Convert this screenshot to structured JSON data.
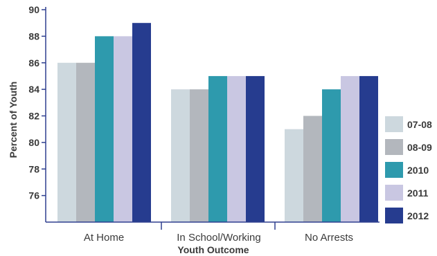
{
  "chart_data": {
    "type": "bar",
    "title": "",
    "xlabel": "Youth Outcome",
    "ylabel": "Percent of Youth",
    "ylim": [
      74,
      90
    ],
    "yticks": [
      76,
      78,
      80,
      82,
      84,
      86,
      88,
      90
    ],
    "categories": [
      "At Home",
      "In School/Working",
      "No Arrests"
    ],
    "series": [
      {
        "name": "07-08",
        "color": "#cdd8de",
        "values": [
          86,
          84,
          81
        ]
      },
      {
        "name": "08-09",
        "color": "#b3b7bd",
        "values": [
          86,
          84,
          82
        ]
      },
      {
        "name": "2010",
        "color": "#2e9aad",
        "values": [
          88,
          85,
          84
        ]
      },
      {
        "name": "2011",
        "color": "#c9c7e2",
        "values": [
          88,
          85,
          85
        ]
      },
      {
        "name": "2012",
        "color": "#263c8f",
        "values": [
          89,
          85,
          85
        ]
      }
    ],
    "legend_position": "right",
    "grid": false,
    "axis_color": "#2e3f8f"
  }
}
